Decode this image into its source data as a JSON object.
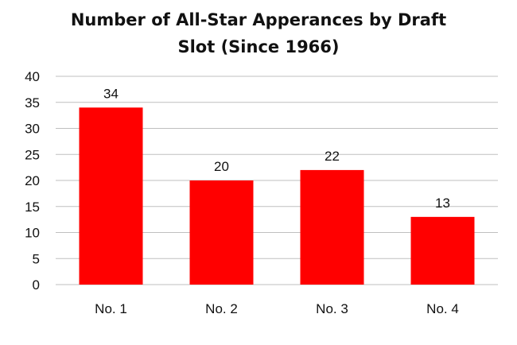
{
  "chart_data": {
    "type": "bar",
    "title_lines": [
      "Number of All-Star Apperances by Draft",
      "Slot (Since 1966)"
    ],
    "categories": [
      "No. 1",
      "No. 2",
      "No. 3",
      "No. 4"
    ],
    "values": [
      34,
      20,
      22,
      13
    ],
    "data_labels": [
      "34",
      "20",
      "22",
      "13"
    ],
    "ylim": [
      0,
      40
    ],
    "yticks": [
      0,
      5,
      10,
      15,
      20,
      25,
      30,
      35,
      40
    ],
    "xlabel": "",
    "ylabel": "",
    "grid": true,
    "legend": "none",
    "bar_color": "#ff0000",
    "grid_color": "#bfbfbf"
  }
}
